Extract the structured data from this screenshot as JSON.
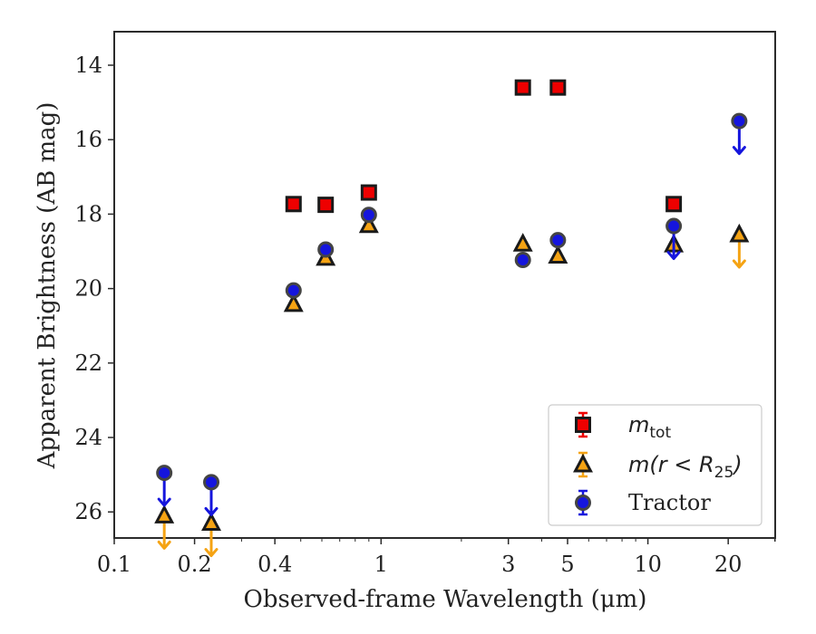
{
  "chart_data": {
    "type": "scatter",
    "xlabel": "Observed-frame Wavelength (μm)",
    "ylabel": "Apparent Brightness (AB mag)",
    "xscale": "log",
    "xlim": [
      0.1,
      30
    ],
    "ylim": [
      26.7,
      13.1
    ],
    "y_inverted": true,
    "grid": false,
    "legend_position": "lower-right",
    "x_tick_labels": [
      "0.1",
      "0.2",
      "0.4",
      "1",
      "3",
      "5",
      "10",
      "20"
    ],
    "x_tick_values": [
      0.1,
      0.2,
      0.4,
      1,
      3,
      5,
      10,
      20
    ],
    "y_tick_labels": [
      "14",
      "16",
      "18",
      "20",
      "22",
      "24",
      "26"
    ],
    "y_tick_values": [
      14,
      16,
      18,
      20,
      22,
      24,
      26
    ],
    "series": [
      {
        "name": "m_tot",
        "legend_main": "m",
        "legend_sub": "tot",
        "marker": "square",
        "color": "#ee0000",
        "points": [
          {
            "x": 0.47,
            "y": 17.73
          },
          {
            "x": 0.62,
            "y": 17.75
          },
          {
            "x": 0.9,
            "y": 17.42
          },
          {
            "x": 3.4,
            "y": 14.6
          },
          {
            "x": 4.6,
            "y": 14.6
          },
          {
            "x": 12.5,
            "y": 17.73
          }
        ]
      },
      {
        "name": "m(r < R_25)",
        "legend_main": "m(r < R",
        "legend_sub": "25",
        "legend_tail": ")",
        "marker": "triangle",
        "color": "#f5a313",
        "points": [
          {
            "x": 0.154,
            "y": 26.1,
            "limit": "lower"
          },
          {
            "x": 0.231,
            "y": 26.3,
            "limit": "lower"
          },
          {
            "x": 0.47,
            "y": 20.42
          },
          {
            "x": 0.62,
            "y": 19.18
          },
          {
            "x": 0.9,
            "y": 18.3
          },
          {
            "x": 3.4,
            "y": 18.8
          },
          {
            "x": 4.6,
            "y": 19.12
          },
          {
            "x": 12.5,
            "y": 18.82
          },
          {
            "x": 22.0,
            "y": 18.55,
            "limit": "upper"
          }
        ]
      },
      {
        "name": "Tractor",
        "legend_main": "Tractor",
        "marker": "circle",
        "color": "#1515dd",
        "points": [
          {
            "x": 0.154,
            "y": 24.95,
            "limit": "upper"
          },
          {
            "x": 0.231,
            "y": 25.2,
            "limit": "upper"
          },
          {
            "x": 0.47,
            "y": 20.05
          },
          {
            "x": 0.62,
            "y": 18.95
          },
          {
            "x": 0.9,
            "y": 18.02
          },
          {
            "x": 3.4,
            "y": 19.23
          },
          {
            "x": 4.6,
            "y": 18.7
          },
          {
            "x": 12.5,
            "y": 18.32,
            "limit": "upper"
          },
          {
            "x": 22.0,
            "y": 15.5,
            "limit": "upper"
          }
        ]
      }
    ]
  }
}
